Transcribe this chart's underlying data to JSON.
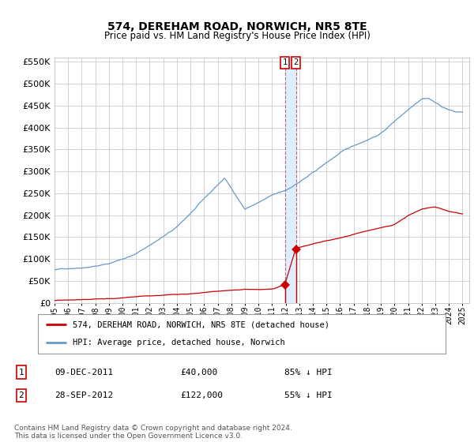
{
  "title": "574, DEREHAM ROAD, NORWICH, NR5 8TE",
  "subtitle": "Price paid vs. HM Land Registry's House Price Index (HPI)",
  "legend_line1": "574, DEREHAM ROAD, NORWICH, NR5 8TE (detached house)",
  "legend_line2": "HPI: Average price, detached house, Norwich",
  "table_rows": [
    {
      "num": "1",
      "date": "09-DEC-2011",
      "price": "£40,000",
      "note": "85% ↓ HPI"
    },
    {
      "num": "2",
      "date": "28-SEP-2012",
      "price": "£122,000",
      "note": "55% ↓ HPI"
    }
  ],
  "footnote": "Contains HM Land Registry data © Crown copyright and database right 2024.\nThis data is licensed under the Open Government Licence v3.0.",
  "hpi_color": "#6699cc",
  "price_color": "#cc0000",
  "marker_color": "#cc0000",
  "highlight_color": "#ddeeff",
  "annotation_box_color": "#cc0000",
  "ylim": [
    0,
    560000
  ],
  "yticks": [
    0,
    50000,
    100000,
    150000,
    200000,
    250000,
    300000,
    350000,
    400000,
    450000,
    500000,
    550000
  ],
  "year_start": 1995,
  "year_end": 2025,
  "sale1_year": 2011.94,
  "sale1_price": 40000,
  "sale2_year": 2012.75,
  "sale2_price": 122000,
  "background_color": "#ffffff",
  "grid_color": "#cccccc",
  "hpi_anchors_x": [
    1995,
    1997,
    1999,
    2001,
    2004,
    2007.5,
    2009,
    2011,
    2012,
    2014,
    2016,
    2019,
    2022,
    2022.5,
    2023.5,
    2024.5
  ],
  "hpi_anchors_y": [
    75000,
    82000,
    92000,
    115000,
    175000,
    285000,
    215000,
    245000,
    255000,
    295000,
    340000,
    385000,
    468000,
    470000,
    450000,
    438000
  ],
  "red_anchors_x": [
    1995,
    1997,
    1999,
    2002,
    2005,
    2008,
    2010,
    2011.1,
    2011.94,
    2012.75,
    2014,
    2016,
    2018,
    2020,
    2021,
    2022,
    2023,
    2024,
    2025
  ],
  "red_anchors_y": [
    5000,
    7000,
    9000,
    13000,
    20000,
    28000,
    28000,
    30000,
    40000,
    122000,
    132000,
    145000,
    162000,
    175000,
    195000,
    210000,
    215000,
    205000,
    200000
  ]
}
